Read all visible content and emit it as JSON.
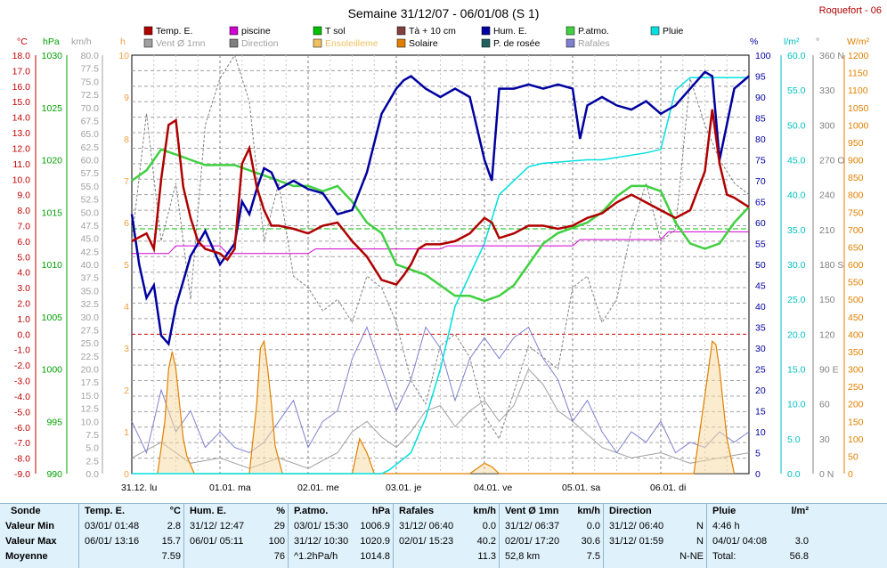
{
  "title": "Semaine 31/12/07 - 06/01/08 (S 1)",
  "station": "Roquefort - 06",
  "legend": [
    {
      "label": "Temp. E.",
      "color": "#b00000"
    },
    {
      "label": "piscine",
      "color": "#d000d0"
    },
    {
      "label": "T sol",
      "color": "#00c000"
    },
    {
      "label": "Tà + 10 cm",
      "color": "#804040"
    },
    {
      "label": "Hum. E.",
      "color": "#0000a0"
    },
    {
      "label": "P.atmo.",
      "color": "#40d040"
    },
    {
      "label": "Pluie",
      "color": "#00e0e0"
    },
    {
      "label": "Vent Ø 1mn",
      "color": "#a0a0a0"
    },
    {
      "label": "Direction",
      "color": "#808080"
    },
    {
      "label": "Ensoleilleme",
      "color": "#f0c060"
    },
    {
      "label": "Solaire",
      "color": "#e08000"
    },
    {
      "label": "P. de rosée",
      "color": "#206060"
    },
    {
      "label": "Rafales",
      "color": "#8080d0"
    }
  ],
  "axis_units": {
    "temp": "°C",
    "hpa": "hPa",
    "kmh": "km/h",
    "h": "h",
    "pct": "%",
    "rain": "l/m²",
    "deg": "°",
    "wm2": "W/m²"
  },
  "axis_ticks": {
    "temp": [
      "18.0",
      "17.0",
      "16.0",
      "15.0",
      "14.0",
      "13.0",
      "12.0",
      "11.0",
      "10.0",
      "9.0",
      "8.0",
      "7.0",
      "6.0",
      "5.0",
      "4.0",
      "3.0",
      "2.0",
      "1.0",
      "0.0",
      "-1.0",
      "-2.0",
      "-3.0",
      "-4.0",
      "-5.0",
      "-6.0",
      "-7.0",
      "-8.0",
      "-9.0"
    ],
    "hpa": [
      "1030",
      "1025",
      "1020",
      "1015",
      "1010",
      "1005",
      "1000",
      "995",
      "990"
    ],
    "kmh": [
      "80.0",
      "77.5",
      "75.0",
      "72.5",
      "70.0",
      "67.5",
      "65.0",
      "62.5",
      "60.0",
      "57.5",
      "55.0",
      "52.5",
      "50.0",
      "47.5",
      "45.0",
      "42.5",
      "40.0",
      "37.5",
      "35.0",
      "32.5",
      "30.0",
      "27.5",
      "25.0",
      "22.5",
      "20.0",
      "17.5",
      "15.0",
      "12.5",
      "10.0",
      "7.5",
      "5.0",
      "2.5",
      "0.0"
    ],
    "h": [
      "10",
      "9",
      "8",
      "7",
      "6",
      "5",
      "4",
      "3",
      "2",
      "1",
      "0"
    ],
    "pct": [
      "100",
      "95",
      "90",
      "85",
      "80",
      "75",
      "70",
      "65",
      "60",
      "55",
      "50",
      "45",
      "40",
      "35",
      "30",
      "25",
      "20",
      "15",
      "10",
      "5",
      "0"
    ],
    "rain": [
      "60.0",
      "55.0",
      "50.0",
      "45.0",
      "40.0",
      "35.0",
      "30.0",
      "25.0",
      "20.0",
      "15.0",
      "10.0",
      "5.0",
      "0.0"
    ],
    "deg": [
      "360 N",
      "330",
      "300",
      "270 O",
      "240",
      "210",
      "180 S",
      "150",
      "120",
      "90 E",
      "60",
      "30",
      "0 N"
    ],
    "wm2": [
      "1200",
      "1150",
      "1100",
      "1050",
      "1000",
      "950",
      "900",
      "850",
      "800",
      "750",
      "700",
      "650",
      "600",
      "550",
      "500",
      "450",
      "400",
      "350",
      "300",
      "250",
      "200",
      "150",
      "100",
      "50",
      "0"
    ]
  },
  "day_labels": [
    "31.12. lu",
    "01.01. ma",
    "02.01. me",
    "03.01. je",
    "04.01. ve",
    "05.01. sa",
    "06.01. di"
  ],
  "chart_data": {
    "type": "line",
    "title": "Semaine 31/12/07 - 06/01/08 (S 1)",
    "x_unit": "hours since 31/12 00:00",
    "x_range": [
      0,
      168
    ],
    "ylim": {
      "temp": [
        -9,
        18
      ],
      "hum": [
        0,
        100
      ],
      "hpa": [
        990,
        1030
      ],
      "kmh": [
        0,
        80
      ],
      "rain": [
        0,
        60
      ],
      "wm2": [
        0,
        1200
      ]
    },
    "series": [
      {
        "name": "Temp. E.",
        "axis": "temp",
        "color": "#b00000",
        "x": [
          0,
          4,
          6,
          8,
          10,
          12,
          14,
          16,
          18,
          20,
          24,
          26,
          28,
          30,
          32,
          34,
          36,
          38,
          40,
          44,
          48,
          52,
          56,
          60,
          64,
          68,
          72,
          74,
          76,
          78,
          80,
          84,
          88,
          92,
          96,
          98,
          100,
          104,
          108,
          112,
          116,
          120,
          124,
          128,
          132,
          136,
          140,
          144,
          148,
          152,
          156,
          158,
          160,
          162,
          164,
          166,
          168
        ],
        "y": [
          6.0,
          6.5,
          5.5,
          10,
          13.5,
          13.8,
          9.5,
          7.5,
          6.0,
          5.5,
          5.2,
          4.8,
          5.5,
          11.0,
          12.0,
          9.5,
          8.0,
          7.0,
          7.0,
          6.8,
          6.5,
          7.0,
          7.2,
          6.0,
          5.0,
          3.5,
          3.2,
          3.8,
          4.5,
          5.5,
          5.8,
          5.8,
          6.0,
          6.5,
          7.5,
          7.2,
          6.2,
          6.5,
          7.0,
          7.0,
          6.8,
          7.0,
          7.5,
          7.8,
          8.5,
          9.0,
          8.5,
          8.0,
          7.5,
          8.0,
          10.5,
          14.5,
          11.0,
          9.0,
          8.8,
          8.5,
          8.2
        ]
      },
      {
        "name": "Hum. E.",
        "axis": "hum",
        "color": "#0000a0",
        "x": [
          0,
          2,
          4,
          6,
          8,
          10,
          12,
          16,
          20,
          24,
          28,
          30,
          32,
          34,
          36,
          38,
          40,
          44,
          48,
          52,
          56,
          60,
          64,
          68,
          72,
          74,
          76,
          80,
          84,
          88,
          92,
          96,
          98,
          100,
          104,
          108,
          112,
          116,
          120,
          122,
          124,
          128,
          132,
          136,
          140,
          144,
          148,
          152,
          156,
          158,
          160,
          164,
          168
        ],
        "y": [
          62,
          50,
          42,
          45,
          33,
          31,
          40,
          52,
          58,
          50,
          55,
          65,
          62,
          68,
          73,
          72,
          68,
          70,
          68,
          67,
          62,
          63,
          72,
          86,
          92,
          94,
          95,
          92,
          90,
          92,
          90,
          75,
          70,
          92,
          92,
          93,
          92,
          93,
          92,
          80,
          88,
          90,
          88,
          87,
          89,
          86,
          88,
          92,
          96,
          95,
          75,
          92,
          95
        ]
      },
      {
        "name": "P.atmo.",
        "axis": "hpa",
        "color": "#40d040",
        "x": [
          0,
          4,
          8,
          12,
          16,
          20,
          24,
          28,
          32,
          36,
          40,
          44,
          48,
          52,
          56,
          60,
          64,
          68,
          72,
          76,
          80,
          84,
          88,
          92,
          96,
          100,
          104,
          108,
          112,
          116,
          120,
          124,
          128,
          132,
          136,
          140,
          144,
          148,
          152,
          156,
          160,
          164,
          168
        ],
        "y": [
          1018,
          1019,
          1021,
          1020.5,
          1020,
          1019.5,
          1019.5,
          1019.5,
          1019,
          1018.5,
          1018,
          1017.5,
          1017.5,
          1017,
          1017.5,
          1016,
          1014,
          1013,
          1010,
          1009.5,
          1009,
          1008,
          1007,
          1007,
          1006.5,
          1007,
          1008,
          1010,
          1012,
          1013,
          1013.5,
          1014,
          1015,
          1016.5,
          1017.5,
          1017.5,
          1017,
          1014,
          1012,
          1011.5,
          1012,
          1014,
          1015.5
        ]
      },
      {
        "name": "T sol",
        "axis": "temp",
        "color": "#00c000",
        "x": [
          0,
          12,
          24,
          36,
          48,
          60,
          72,
          84,
          96,
          108,
          120,
          132,
          144,
          156,
          168
        ],
        "y": [
          6.8,
          6.8,
          6.8,
          6.8,
          6.8,
          6.8,
          6.8,
          6.8,
          6.8,
          6.8,
          6.8,
          6.8,
          6.8,
          6.8,
          6.8
        ]
      },
      {
        "name": "piscine",
        "axis": "temp",
        "color": "#d000d0",
        "x": [
          0,
          10,
          12,
          24,
          26,
          48,
          50,
          84,
          86,
          120,
          122,
          144,
          146,
          168
        ],
        "y": [
          5.2,
          5.2,
          5.7,
          5.7,
          5.2,
          5.2,
          5.5,
          5.5,
          5.7,
          5.7,
          6.1,
          6.1,
          6.6,
          6.6
        ]
      },
      {
        "name": "Pluie",
        "axis": "rain",
        "color": "#00e0e0",
        "x": [
          0,
          68,
          70,
          76,
          80,
          84,
          88,
          96,
          100,
          108,
          112,
          124,
          128,
          140,
          144,
          148,
          152,
          168
        ],
        "y": [
          0,
          0,
          0.5,
          3,
          8,
          15,
          24,
          33,
          40,
          44,
          44.5,
          45,
          45,
          46,
          46.5,
          55,
          56.8,
          56.8
        ]
      },
      {
        "name": "Rafales",
        "axis": "kmh",
        "color": "#8080d0",
        "x": [
          0,
          4,
          8,
          12,
          16,
          20,
          24,
          28,
          32,
          36,
          40,
          44,
          48,
          52,
          56,
          60,
          64,
          68,
          72,
          76,
          80,
          84,
          88,
          92,
          96,
          100,
          104,
          108,
          112,
          116,
          120,
          124,
          128,
          132,
          136,
          140,
          144,
          148,
          152,
          156,
          160,
          164,
          168
        ],
        "y": [
          10,
          4,
          16,
          8,
          12,
          5,
          8,
          5,
          4,
          6,
          10,
          14,
          5,
          10,
          12,
          22,
          28,
          20,
          12,
          18,
          28,
          24,
          14,
          22,
          26,
          22,
          26,
          28,
          22,
          18,
          10,
          14,
          8,
          4,
          8,
          6,
          10,
          4,
          6,
          5,
          8,
          6,
          8
        ]
      },
      {
        "name": "Vent Ø 1mn",
        "axis": "kmh",
        "color": "#a0a0a0",
        "x": [
          0,
          8,
          16,
          24,
          32,
          40,
          48,
          56,
          60,
          64,
          68,
          72,
          76,
          80,
          84,
          88,
          92,
          96,
          100,
          104,
          108,
          112,
          116,
          120,
          128,
          136,
          144,
          152,
          160,
          168
        ],
        "y": [
          3,
          6,
          2,
          3,
          1,
          3,
          1,
          4,
          8,
          10,
          7,
          5,
          8,
          12,
          13,
          9,
          12,
          14,
          10,
          13,
          20,
          17,
          12,
          10,
          5,
          3,
          4,
          2,
          3,
          4
        ]
      },
      {
        "name": "Solaire",
        "axis": "wm2",
        "color": "#e08000",
        "x": [
          7,
          9,
          10,
          11,
          12,
          13,
          14,
          15,
          17,
          32,
          33,
          34,
          35,
          36,
          37,
          38,
          39,
          41,
          60,
          62,
          64,
          66,
          92,
          96,
          98,
          100,
          100,
          153,
          155,
          157,
          158,
          159,
          160,
          161,
          162,
          164
        ],
        "y": [
          0,
          150,
          300,
          350,
          300,
          200,
          100,
          50,
          0,
          0,
          100,
          200,
          360,
          380,
          300,
          200,
          80,
          0,
          0,
          100,
          60,
          0,
          0,
          30,
          20,
          0,
          0,
          0,
          150,
          300,
          380,
          370,
          300,
          200,
          100,
          0
        ]
      },
      {
        "name": "Direction",
        "axis": "deg",
        "color": "#808080",
        "x": [
          0,
          4,
          8,
          12,
          16,
          20,
          24,
          28,
          32,
          36,
          40,
          44,
          48,
          52,
          56,
          60,
          64,
          68,
          72,
          76,
          80,
          84,
          88,
          92,
          96,
          100,
          104,
          108,
          112,
          116,
          120,
          124,
          128,
          132,
          136,
          140,
          144,
          148,
          152,
          156,
          160,
          164,
          168
        ],
        "y": [
          200,
          310,
          200,
          250,
          150,
          300,
          340,
          360,
          320,
          200,
          250,
          170,
          160,
          140,
          150,
          130,
          170,
          160,
          130,
          80,
          60,
          110,
          120,
          100,
          50,
          30,
          70,
          110,
          100,
          90,
          160,
          170,
          130,
          150,
          210,
          250,
          200,
          210,
          340,
          300,
          270,
          250,
          240
        ]
      }
    ]
  },
  "table": {
    "row_labels": [
      "Sonde",
      "Valeur Min",
      "Valeur Max",
      "Moyenne"
    ],
    "columns": [
      {
        "title": "Temp. E.",
        "unit": "°C",
        "rows": [
          [
            "03/01/ 01:48",
            "2.8"
          ],
          [
            "06/01/ 13:16",
            "15.7"
          ],
          [
            "",
            "7.59"
          ]
        ]
      },
      {
        "title": "Hum. E.",
        "unit": "%",
        "rows": [
          [
            "31/12/ 12:47",
            "29"
          ],
          [
            "06/01/ 05:11",
            "100"
          ],
          [
            "",
            "76"
          ]
        ]
      },
      {
        "title": "P.atmo.",
        "unit": "hPa",
        "rows": [
          [
            "03/01/ 15:30",
            "1006.9"
          ],
          [
            "31/12/ 10:30",
            "1020.9"
          ],
          [
            "^1.2hPa/h",
            "1014.8"
          ]
        ]
      },
      {
        "title": "Rafales",
        "unit": "km/h",
        "rows": [
          [
            "31/12/ 06:40",
            "0.0"
          ],
          [
            "02/01/ 15:23",
            "40.2"
          ],
          [
            "",
            "11.3"
          ]
        ]
      },
      {
        "title": "Vent Ø 1mn",
        "unit": "km/h",
        "rows": [
          [
            "31/12/ 06:37",
            "0.0"
          ],
          [
            "02/01/ 17:20",
            "30.6"
          ],
          [
            "52,8 km",
            "7.5"
          ]
        ]
      },
      {
        "title": "Direction",
        "unit": "",
        "rows": [
          [
            "31/12/ 06:40",
            "N"
          ],
          [
            "31/12/ 01:59",
            "N"
          ],
          [
            "",
            "N-NE"
          ]
        ]
      },
      {
        "title": "Pluie",
        "unit": "l/m²",
        "rows": [
          [
            "4:46 h",
            ""
          ],
          [
            "04/01/ 04:08",
            "3.0"
          ],
          [
            "Total:",
            "56.8"
          ]
        ]
      }
    ]
  }
}
